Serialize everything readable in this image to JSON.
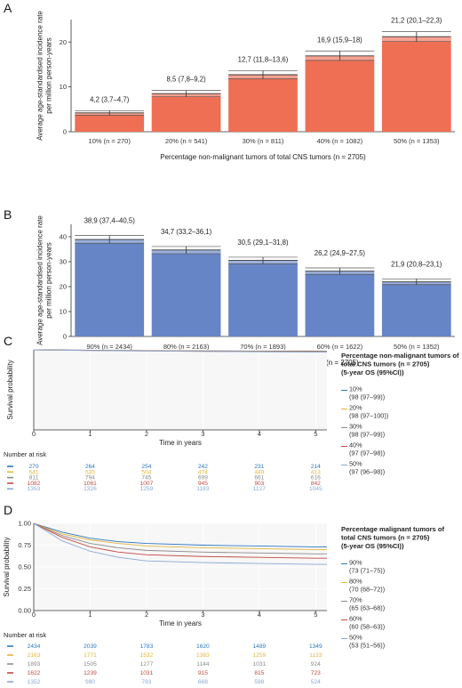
{
  "chart_data": [
    {
      "panel": "A",
      "type": "bar",
      "ylabel_lines": [
        "Average age-standardised incidence rate",
        "per million person-years"
      ],
      "xlabel": "Percentage non-malignant tumors of total CNS tumors (n = 2705)",
      "categories": [
        "10% (n = 270)",
        "20% (n = 541)",
        "30% (n = 811)",
        "40% (n = 1082)",
        "50% (n = 1353)"
      ],
      "values": [
        4.2,
        8.5,
        12.7,
        16.9,
        21.2
      ],
      "ci_low": [
        3.7,
        7.8,
        11.8,
        15.9,
        20.1
      ],
      "ci_high": [
        4.7,
        9.2,
        13.6,
        18.0,
        22.3
      ],
      "labels": [
        "4,2 (3,7–4,7)",
        "8,5 (7,8–9,2)",
        "12,7 (11,8–13,6)",
        "16,9 (15,9–18)",
        "21,2 (20,1–22,3)"
      ],
      "yticks": [
        "0",
        "10",
        "20"
      ],
      "ylim": [
        0,
        25
      ],
      "color": "#ef6f55"
    },
    {
      "panel": "B",
      "type": "bar",
      "ylabel_lines": [
        "Average age-standardised incidence rate",
        "per million person-years"
      ],
      "xlabel": "Percentage malignant tumors of total CNS tumors (n = 2705)",
      "categories": [
        "90% (n = 2434)",
        "80% (n = 2163)",
        "70% (n = 1893)",
        "60% (n = 1622)",
        "50% (n = 1352)"
      ],
      "values": [
        38.9,
        34.7,
        30.5,
        26.2,
        21.9
      ],
      "ci_low": [
        37.4,
        33.2,
        29.1,
        24.9,
        20.8
      ],
      "ci_high": [
        40.5,
        36.1,
        31.8,
        27.5,
        23.1
      ],
      "labels": [
        "38,9 (37,4–40,5)",
        "34,7 (33,2–36,1)",
        "30,5 (29,1–31,8)",
        "26,2 (24,9–27,5)",
        "21,9 (20,8–23,1)"
      ],
      "yticks": [
        "0",
        "10",
        "20",
        "30",
        "40"
      ],
      "ylim": [
        0,
        45
      ],
      "color": "#6685c6"
    },
    {
      "panel": "C",
      "type": "line",
      "ylabel": "Survival probability",
      "xlabel": "Time in years",
      "xticks": [
        "0",
        "1",
        "2",
        "3",
        "4",
        "5"
      ],
      "xlim": [
        0,
        5.2
      ],
      "ylim": [
        0,
        1
      ],
      "legend_title_lines": [
        "Percentage non-malignant tumors of",
        "total CNS tumors (n = 2705)",
        "(5-year OS (95%CI))"
      ],
      "risk_title": "Number at risk",
      "risk_times": [
        0,
        1,
        2,
        3,
        4,
        5
      ],
      "series": [
        {
          "name": "10%",
          "ci": "(98 (97–99))",
          "color": "#2b78c2",
          "x": [
            0,
            1,
            2,
            3,
            4,
            5,
            5.2
          ],
          "y": [
            1.0,
            0.995,
            0.99,
            0.987,
            0.984,
            0.982,
            0.981
          ],
          "risk": [
            "270",
            "264",
            "254",
            "242",
            "231",
            "214"
          ]
        },
        {
          "name": "20%",
          "ci": "(98 (97–100))",
          "color": "#e3b53c",
          "x": [
            0,
            1,
            2,
            3,
            4,
            5,
            5.2
          ],
          "y": [
            1.0,
            0.994,
            0.989,
            0.986,
            0.983,
            0.981,
            0.98
          ],
          "risk": [
            "541",
            "533",
            "504",
            "474",
            "449",
            "413"
          ]
        },
        {
          "name": "30%",
          "ci": "(98 (97–99))",
          "color": "#8c8c8c",
          "x": [
            0,
            1,
            2,
            3,
            4,
            5,
            5.2
          ],
          "y": [
            1.0,
            0.993,
            0.988,
            0.984,
            0.981,
            0.979,
            0.978
          ],
          "risk": [
            "811",
            "794",
            "745",
            "699",
            "661",
            "616"
          ]
        },
        {
          "name": "40%",
          "ci": "(97 (97–98))",
          "color": "#c44a43",
          "x": [
            0,
            1,
            2,
            3,
            4,
            5,
            5.2
          ],
          "y": [
            1.0,
            0.992,
            0.986,
            0.981,
            0.977,
            0.975,
            0.974
          ],
          "risk": [
            "1082",
            "1061",
            "1007",
            "945",
            "903",
            "842"
          ]
        },
        {
          "name": "50%",
          "ci": "(97 (96–98))",
          "color": "#88a9d6",
          "x": [
            0,
            1,
            2,
            3,
            4,
            5,
            5.2
          ],
          "y": [
            1.0,
            0.991,
            0.985,
            0.98,
            0.975,
            0.972,
            0.971
          ],
          "risk": [
            "1353",
            "1326",
            "1259",
            "1183",
            "1127",
            "1045"
          ]
        }
      ]
    },
    {
      "panel": "D",
      "type": "line",
      "ylabel": "Survival probability",
      "xlabel": "Time in years",
      "xticks": [
        "0",
        "1",
        "2",
        "3",
        "4",
        "5"
      ],
      "yticks": [
        "0.00",
        "0.25",
        "0.50",
        "0.75",
        "1.00"
      ],
      "xlim": [
        0,
        5.2
      ],
      "ylim": [
        0,
        1
      ],
      "legend_title_lines": [
        "Percentage malignant tumors of",
        "total CNS tumors (n = 2705)",
        "(5-year OS (95%CI))"
      ],
      "risk_title": "Number at risk",
      "risk_times": [
        0,
        1,
        2,
        3,
        4,
        5
      ],
      "series": [
        {
          "name": "90%",
          "ci": "(73 (71–75))",
          "color": "#2b78c2",
          "x": [
            0,
            0.25,
            0.5,
            1,
            1.5,
            2,
            3,
            4,
            5,
            5.2
          ],
          "y": [
            1.0,
            0.95,
            0.9,
            0.83,
            0.79,
            0.77,
            0.75,
            0.74,
            0.73,
            0.73
          ],
          "risk": [
            "2434",
            "2039",
            "1783",
            "1620",
            "1489",
            "1349"
          ]
        },
        {
          "name": "80%",
          "ci": "(70 (68–72))",
          "color": "#e3b53c",
          "x": [
            0,
            0.25,
            0.5,
            1,
            1.5,
            2,
            3,
            4,
            5,
            5.2
          ],
          "y": [
            1.0,
            0.94,
            0.88,
            0.81,
            0.77,
            0.74,
            0.72,
            0.71,
            0.7,
            0.7
          ],
          "risk": [
            "2163",
            "1771",
            "1532",
            "1383",
            "1259",
            "1133"
          ]
        },
        {
          "name": "70%",
          "ci": "(65 (63–68))",
          "color": "#8c8c8c",
          "x": [
            0,
            0.25,
            0.5,
            1,
            1.5,
            2,
            3,
            4,
            5,
            5.2
          ],
          "y": [
            1.0,
            0.93,
            0.86,
            0.77,
            0.72,
            0.69,
            0.67,
            0.66,
            0.65,
            0.65
          ],
          "risk": [
            "1893",
            "1505",
            "1277",
            "1144",
            "1031",
            "924"
          ]
        },
        {
          "name": "60%",
          "ci": "(60 (58–63))",
          "color": "#c44a43",
          "x": [
            0,
            0.25,
            0.5,
            1,
            1.5,
            2,
            3,
            4,
            5,
            5.2
          ],
          "y": [
            1.0,
            0.92,
            0.84,
            0.73,
            0.67,
            0.64,
            0.62,
            0.61,
            0.6,
            0.6
          ],
          "risk": [
            "1622",
            "1239",
            "1031",
            "915",
            "815",
            "723"
          ]
        },
        {
          "name": "50%",
          "ci": "(53 (51–56))",
          "color": "#88a9d6",
          "x": [
            0,
            0.25,
            0.5,
            1,
            1.5,
            2,
            3,
            4,
            5,
            5.2
          ],
          "y": [
            1.0,
            0.9,
            0.8,
            0.68,
            0.61,
            0.57,
            0.55,
            0.54,
            0.53,
            0.53
          ],
          "risk": [
            "1352",
            "980",
            "783",
            "668",
            "598",
            "524"
          ]
        }
      ]
    }
  ]
}
